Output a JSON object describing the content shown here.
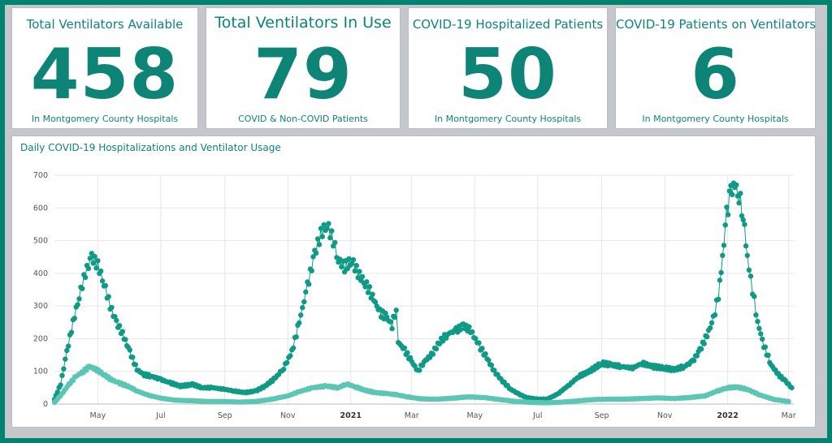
{
  "kpis": [
    {
      "title": "Total Ventilators Available",
      "value": "458",
      "subtitle": "In Montgomery County Hospitals"
    },
    {
      "title": "Total Ventilators In Use",
      "value": "79",
      "subtitle": "COVID & Non-COVID Patients"
    },
    {
      "title": "COVID-19 Hospitalized Patients",
      "value": "50",
      "subtitle": "In Montgomery County Hospitals"
    },
    {
      "title": "COVID-19 Patients on Ventilators",
      "value": "6",
      "subtitle": "In Montgomery County Hospitals"
    }
  ],
  "colors": {
    "accent": "#0e8476",
    "hospitalized": "#0e9a84",
    "ventilators": "#5cc6b4"
  },
  "chart_data": {
    "type": "scatter",
    "title": "Daily COVID-19 Hospitalizations and Ventilator Usage",
    "xlabel": "",
    "ylabel": "",
    "ylim": [
      0,
      700
    ],
    "xlim": [
      "2020-03-20",
      "2022-03-06"
    ],
    "y_ticks": [
      "0",
      "100",
      "200",
      "300",
      "400",
      "500",
      "600",
      "700"
    ],
    "x_ticks": [
      {
        "label": "May",
        "date": "2020-05-01",
        "bold": false
      },
      {
        "label": "Jul",
        "date": "2020-07-01",
        "bold": false
      },
      {
        "label": "Sep",
        "date": "2020-09-01",
        "bold": false
      },
      {
        "label": "Nov",
        "date": "2020-11-01",
        "bold": false
      },
      {
        "label": "2021",
        "date": "2021-01-01",
        "bold": true
      },
      {
        "label": "Mar",
        "date": "2021-03-01",
        "bold": false
      },
      {
        "label": "May",
        "date": "2021-05-01",
        "bold": false
      },
      {
        "label": "Jul",
        "date": "2021-07-01",
        "bold": false
      },
      {
        "label": "Sep",
        "date": "2021-09-01",
        "bold": false
      },
      {
        "label": "Nov",
        "date": "2021-11-01",
        "bold": false
      },
      {
        "label": "2022",
        "date": "2022-01-01",
        "bold": true
      },
      {
        "label": "Mar",
        "date": "2022-03-01",
        "bold": false
      }
    ],
    "grid": true,
    "series": [
      {
        "key": "hospitalized",
        "points": [
          [
            "2020-03-20",
            15
          ],
          [
            "2020-03-26",
            60
          ],
          [
            "2020-04-01",
            160
          ],
          [
            "2020-04-07",
            250
          ],
          [
            "2020-04-13",
            330
          ],
          [
            "2020-04-19",
            400
          ],
          [
            "2020-04-25",
            450
          ],
          [
            "2020-05-01",
            425
          ],
          [
            "2020-05-07",
            370
          ],
          [
            "2020-05-13",
            300
          ],
          [
            "2020-05-19",
            250
          ],
          [
            "2020-05-25",
            215
          ],
          [
            "2020-06-01",
            160
          ],
          [
            "2020-06-08",
            105
          ],
          [
            "2020-06-15",
            90
          ],
          [
            "2020-06-22",
            85
          ],
          [
            "2020-07-01",
            75
          ],
          [
            "2020-07-10",
            65
          ],
          [
            "2020-07-20",
            55
          ],
          [
            "2020-08-01",
            60
          ],
          [
            "2020-08-10",
            50
          ],
          [
            "2020-08-20",
            50
          ],
          [
            "2020-09-01",
            45
          ],
          [
            "2020-09-10",
            40
          ],
          [
            "2020-09-20",
            35
          ],
          [
            "2020-10-01",
            40
          ],
          [
            "2020-10-10",
            55
          ],
          [
            "2020-10-20",
            80
          ],
          [
            "2020-10-28",
            110
          ],
          [
            "2020-11-05",
            160
          ],
          [
            "2020-11-12",
            250
          ],
          [
            "2020-11-20",
            360
          ],
          [
            "2020-11-27",
            460
          ],
          [
            "2020-12-03",
            520
          ],
          [
            "2020-12-09",
            550
          ],
          [
            "2020-12-15",
            500
          ],
          [
            "2020-12-20",
            440
          ],
          [
            "2020-12-26",
            420
          ],
          [
            "2021-01-02",
            440
          ],
          [
            "2021-01-08",
            400
          ],
          [
            "2021-01-15",
            370
          ],
          [
            "2021-01-22",
            330
          ],
          [
            "2021-01-29",
            280
          ],
          [
            "2021-02-05",
            265
          ],
          [
            "2021-02-10",
            240
          ],
          [
            "2021-02-14",
            295
          ],
          [
            "2021-02-16",
            190
          ],
          [
            "2021-02-22",
            165
          ],
          [
            "2021-03-01",
            130
          ],
          [
            "2021-03-07",
            100
          ],
          [
            "2021-03-13",
            130
          ],
          [
            "2021-03-20",
            150
          ],
          [
            "2021-03-28",
            190
          ],
          [
            "2021-04-05",
            215
          ],
          [
            "2021-04-13",
            225
          ],
          [
            "2021-04-20",
            240
          ],
          [
            "2021-04-27",
            225
          ],
          [
            "2021-05-05",
            180
          ],
          [
            "2021-05-13",
            140
          ],
          [
            "2021-05-20",
            100
          ],
          [
            "2021-05-28",
            70
          ],
          [
            "2021-06-05",
            45
          ],
          [
            "2021-06-13",
            30
          ],
          [
            "2021-06-20",
            20
          ],
          [
            "2021-07-01",
            15
          ],
          [
            "2021-07-10",
            15
          ],
          [
            "2021-07-20",
            30
          ],
          [
            "2021-08-01",
            60
          ],
          [
            "2021-08-10",
            85
          ],
          [
            "2021-08-20",
            100
          ],
          [
            "2021-09-01",
            125
          ],
          [
            "2021-09-10",
            120
          ],
          [
            "2021-09-20",
            115
          ],
          [
            "2021-10-01",
            110
          ],
          [
            "2021-10-10",
            125
          ],
          [
            "2021-10-20",
            115
          ],
          [
            "2021-11-01",
            110
          ],
          [
            "2021-11-10",
            105
          ],
          [
            "2021-11-20",
            115
          ],
          [
            "2021-11-28",
            130
          ],
          [
            "2021-12-05",
            165
          ],
          [
            "2021-12-12",
            210
          ],
          [
            "2021-12-18",
            260
          ],
          [
            "2021-12-23",
            330
          ],
          [
            "2021-12-27",
            450
          ],
          [
            "2021-12-31",
            580
          ],
          [
            "2022-01-04",
            650
          ],
          [
            "2022-01-08",
            670
          ],
          [
            "2022-01-12",
            640
          ],
          [
            "2022-01-16",
            580
          ],
          [
            "2022-01-20",
            450
          ],
          [
            "2022-01-25",
            350
          ],
          [
            "2022-01-30",
            250
          ],
          [
            "2022-02-05",
            180
          ],
          [
            "2022-02-12",
            120
          ],
          [
            "2022-02-19",
            90
          ],
          [
            "2022-02-26",
            70
          ],
          [
            "2022-03-04",
            50
          ]
        ]
      },
      {
        "key": "ventilators",
        "points": [
          [
            "2020-03-20",
            5
          ],
          [
            "2020-03-27",
            30
          ],
          [
            "2020-04-03",
            60
          ],
          [
            "2020-04-10",
            85
          ],
          [
            "2020-04-17",
            100
          ],
          [
            "2020-04-23",
            115
          ],
          [
            "2020-04-30",
            105
          ],
          [
            "2020-05-07",
            90
          ],
          [
            "2020-05-14",
            75
          ],
          [
            "2020-05-21",
            65
          ],
          [
            "2020-05-30",
            55
          ],
          [
            "2020-06-08",
            40
          ],
          [
            "2020-06-18",
            28
          ],
          [
            "2020-07-01",
            18
          ],
          [
            "2020-07-15",
            12
          ],
          [
            "2020-08-01",
            10
          ],
          [
            "2020-08-15",
            8
          ],
          [
            "2020-09-01",
            8
          ],
          [
            "2020-09-15",
            6
          ],
          [
            "2020-10-01",
            8
          ],
          [
            "2020-10-15",
            14
          ],
          [
            "2020-11-01",
            25
          ],
          [
            "2020-11-12",
            38
          ],
          [
            "2020-11-25",
            50
          ],
          [
            "2020-12-08",
            55
          ],
          [
            "2020-12-20",
            50
          ],
          [
            "2020-12-28",
            62
          ],
          [
            "2021-01-06",
            52
          ],
          [
            "2021-01-15",
            42
          ],
          [
            "2021-01-25",
            35
          ],
          [
            "2021-02-05",
            32
          ],
          [
            "2021-02-15",
            28
          ],
          [
            "2021-02-25",
            22
          ],
          [
            "2021-03-10",
            16
          ],
          [
            "2021-03-25",
            15
          ],
          [
            "2021-04-10",
            18
          ],
          [
            "2021-04-25",
            22
          ],
          [
            "2021-05-10",
            20
          ],
          [
            "2021-05-25",
            14
          ],
          [
            "2021-06-10",
            8
          ],
          [
            "2021-06-25",
            5
          ],
          [
            "2021-07-10",
            4
          ],
          [
            "2021-07-25",
            6
          ],
          [
            "2021-08-10",
            10
          ],
          [
            "2021-08-25",
            14
          ],
          [
            "2021-09-10",
            15
          ],
          [
            "2021-09-25",
            15
          ],
          [
            "2021-10-10",
            17
          ],
          [
            "2021-10-25",
            19
          ],
          [
            "2021-11-10",
            17
          ],
          [
            "2021-11-25",
            20
          ],
          [
            "2021-12-10",
            25
          ],
          [
            "2021-12-22",
            40
          ],
          [
            "2022-01-01",
            50
          ],
          [
            "2022-01-10",
            52
          ],
          [
            "2022-01-20",
            45
          ],
          [
            "2022-02-01",
            28
          ],
          [
            "2022-02-15",
            14
          ],
          [
            "2022-03-01",
            8
          ]
        ]
      }
    ]
  }
}
